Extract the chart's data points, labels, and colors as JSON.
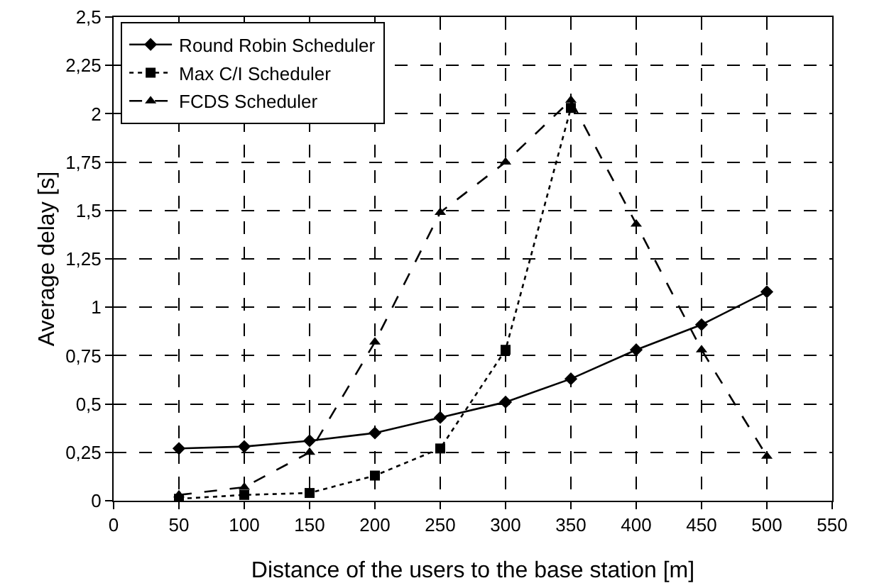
{
  "chart_data": {
    "type": "line",
    "xlabel": "Distance of the users to the base station [m]",
    "ylabel": "Average delay [s]",
    "x": [
      50,
      100,
      150,
      200,
      250,
      300,
      350,
      400,
      450,
      500
    ],
    "series": [
      {
        "name": "Round Robin Scheduler",
        "color": "#000000",
        "marker": "diamond",
        "line_style": "solid",
        "values": [
          0.27,
          0.28,
          0.31,
          0.35,
          0.43,
          0.51,
          0.63,
          0.78,
          0.91,
          1.08
        ]
      },
      {
        "name": "Max C/I Scheduler",
        "color": "#000000",
        "marker": "square",
        "line_style": "dotted",
        "x": [
          50,
          100,
          150,
          200,
          250,
          300,
          350
        ],
        "values": [
          0.01,
          0.03,
          0.04,
          0.13,
          0.27,
          0.78,
          2.03
        ]
      },
      {
        "name": "FCDS Scheduler",
        "color": "#000000",
        "marker": "triangle",
        "line_style": "dashed",
        "values": [
          0.03,
          0.07,
          0.25,
          0.82,
          1.49,
          1.75,
          2.07,
          1.43,
          0.78,
          0.23
        ]
      }
    ],
    "xlim": [
      0,
      550
    ],
    "xticks": [
      0,
      50,
      100,
      150,
      200,
      250,
      300,
      350,
      400,
      450,
      500,
      550
    ],
    "ylim": [
      0,
      2.5
    ],
    "yticks": [
      0,
      {
        "value": 0.25,
        "label": "0,25"
      },
      {
        "value": 0.5,
        "label": "0,5"
      },
      {
        "value": 0.75,
        "label": "0,75"
      },
      1,
      {
        "value": 1.25,
        "label": "1,25"
      },
      {
        "value": 1.5,
        "label": "1,5"
      },
      {
        "value": 1.75,
        "label": "1,75"
      },
      2,
      {
        "value": 2.25,
        "label": "2,25"
      },
      {
        "value": 2.5,
        "label": "2,5"
      }
    ],
    "grid": true,
    "legend": "top left"
  }
}
